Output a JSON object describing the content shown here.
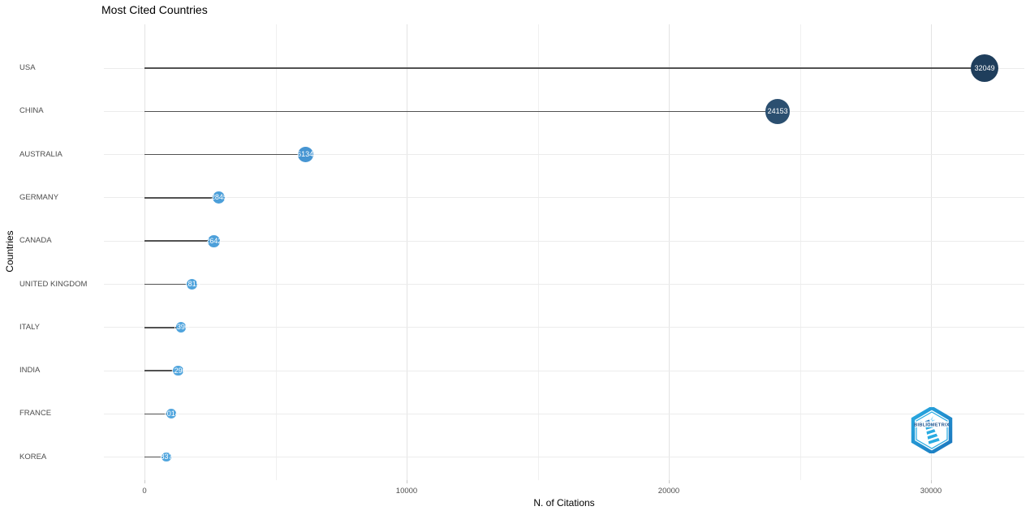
{
  "figure": {
    "title": "Most Cited Countries",
    "x_axis_title": "N. of Citations",
    "y_axis_title": "Countries"
  },
  "chart_data": {
    "type": "scatter",
    "variant": "lollipop-dot-chart",
    "title": "Most Cited Countries",
    "xlabel": "N. of Citations",
    "ylabel": "Countries",
    "categories": [
      "USA",
      "CHINA",
      "AUSTRALIA",
      "GERMANY",
      "CANADA",
      "UNITED KINGDOM",
      "ITALY",
      "INDIA",
      "FRANCE",
      "KOREA"
    ],
    "values": [
      32049,
      24153,
      6134,
      2845,
      2642,
      1815,
      1390,
      1290,
      1014,
      837
    ],
    "value_labels_on_dots": true,
    "xlim": [
      0,
      33500
    ],
    "xticks": [
      0,
      10000,
      20000,
      30000
    ],
    "xticks_minor": [
      5000,
      15000,
      25000
    ],
    "grid": "vertical major+minor gridlines, light horizontal line per category row",
    "legend": "none",
    "point_colors": [
      "#1f3e5c",
      "#2b4f70",
      "#4695d2",
      "#4c9fd9",
      "#4da0da",
      "#4fa3dc",
      "#50a4dd",
      "#51a5dd",
      "#52a6de",
      "#52a6de"
    ],
    "stem_color": "#515151",
    "colors": {
      "row_gridline": "#ececec",
      "v_gridline_major": "#e3e3e3",
      "v_gridline_minor": "#f0f0f0",
      "tick_label": "#4d4d4d",
      "dot_value_label": "#ffffff",
      "logo_blue": "#29abe2",
      "logo_dark_blue": "#1b75bc",
      "logo_navy": "#1b4f8a"
    }
  },
  "watermark": {
    "label": "BIBLIOMETRIX"
  }
}
